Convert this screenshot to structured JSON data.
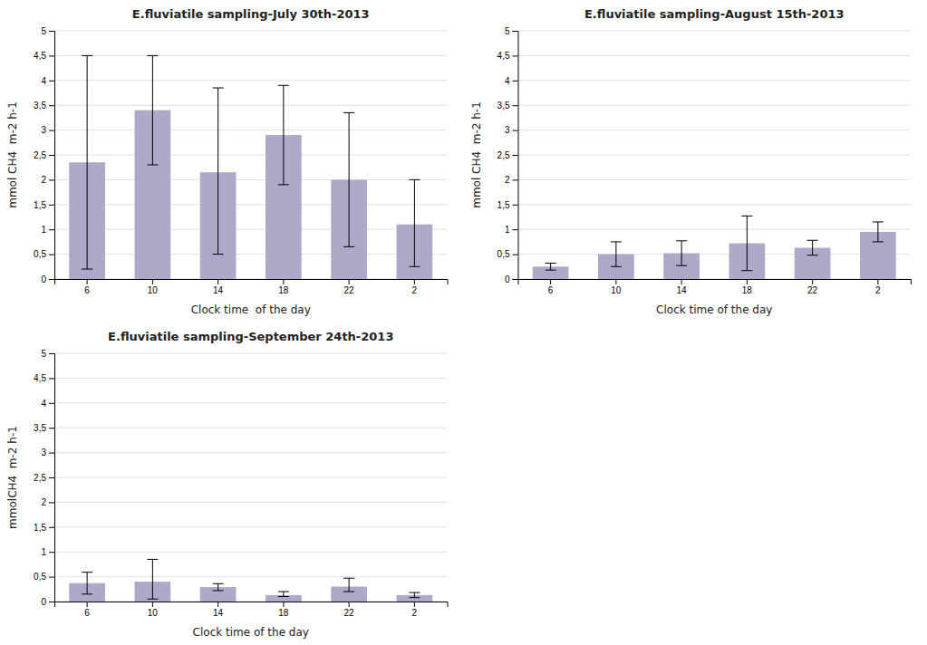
{
  "chart_data": [
    {
      "type": "bar",
      "title": "E.fluviatile sampling-July 30th-2013",
      "xlabel": "Clock time  of the day",
      "ylabel": "mmol CH4  m-2 h-1",
      "categories": [
        "6",
        "10",
        "14",
        "18",
        "22",
        "2"
      ],
      "values": [
        2.35,
        3.4,
        2.15,
        2.9,
        2.0,
        1.1
      ],
      "errors_upper": [
        2.15,
        1.1,
        1.7,
        1.0,
        1.35,
        0.9
      ],
      "errors_lower": [
        2.15,
        1.1,
        1.65,
        1.0,
        1.35,
        0.85
      ],
      "color": "#b0a8c8",
      "ylim": [
        0,
        5
      ],
      "yticks": [
        0,
        {
          "value": 0.5,
          "label": "0,5"
        },
        1,
        {
          "value": 1.5,
          "label": "1,5"
        },
        2,
        {
          "value": 2.5,
          "label": "2,5"
        },
        3,
        {
          "value": 3.5,
          "label": "3,5"
        },
        4,
        {
          "value": 4.5,
          "label": "4,5"
        },
        5
      ],
      "grid": true
    },
    {
      "type": "bar",
      "title": "E.fluviatile sampling-August 15th-2013",
      "xlabel": "Clock time of the day",
      "ylabel": "mmol CH4  m-2 h-1",
      "categories": [
        "6",
        "10",
        "14",
        "18",
        "22",
        "2"
      ],
      "values": [
        0.25,
        0.5,
        0.52,
        0.72,
        0.63,
        0.95
      ],
      "errors_upper": [
        0.07,
        0.25,
        0.25,
        0.55,
        0.15,
        0.2
      ],
      "errors_lower": [
        0.07,
        0.25,
        0.25,
        0.55,
        0.15,
        0.2
      ],
      "color": "#b0a8c8",
      "ylim": [
        0,
        5
      ],
      "yticks": [
        0,
        {
          "value": 0.5,
          "label": "0,5"
        },
        1,
        {
          "value": 1.5,
          "label": "1,5"
        },
        2,
        {
          "value": 2.5,
          "label": "2,5"
        },
        3,
        {
          "value": 3.5,
          "label": "3,5"
        },
        4,
        {
          "value": 4.5,
          "label": "4,5"
        },
        5
      ],
      "grid": true
    },
    {
      "type": "bar",
      "title": "E.fluviatile sampling-September 24th-2013",
      "xlabel": "Clock time of the day",
      "ylabel": "mmolCH4  m-2 h-1",
      "categories": [
        "6",
        "10",
        "14",
        "18",
        "22",
        "2"
      ],
      "values": [
        0.37,
        0.4,
        0.29,
        0.13,
        0.3,
        0.13
      ],
      "errors_upper": [
        0.22,
        0.45,
        0.07,
        0.07,
        0.17,
        0.05
      ],
      "errors_lower": [
        0.22,
        0.35,
        0.07,
        0.03,
        0.1,
        0.05
      ],
      "color": "#b0a8c8",
      "ylim": [
        0,
        5
      ],
      "yticks": [
        0,
        {
          "value": 0.5,
          "label": "0,5"
        },
        1,
        {
          "value": 1.5,
          "label": "1,5"
        },
        2,
        {
          "value": 2.5,
          "label": "2,5"
        },
        3,
        {
          "value": 3.5,
          "label": "3,5"
        },
        4,
        {
          "value": 4.5,
          "label": "4,5"
        },
        5
      ],
      "grid": true
    }
  ]
}
